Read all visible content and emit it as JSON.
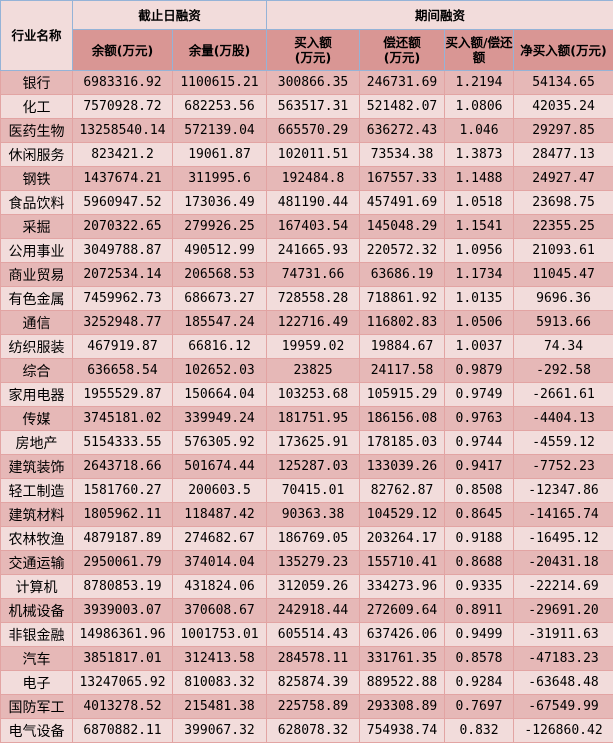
{
  "headers": {
    "industry": "行业名称",
    "group1": "截止日融资",
    "group2": "期间融资",
    "balance": "余额(万元)",
    "volume": "余量(万股)",
    "buy": "买入额\n(万元)",
    "repay": "偿还额\n(万元)",
    "ratio": "买入额/偿还额",
    "net": "净买入额(万元)"
  },
  "rows": [
    [
      "银行",
      "6983316.92",
      "1100615.21",
      "300866.35",
      "246731.69",
      "1.2194",
      "54134.65"
    ],
    [
      "化工",
      "7570928.72",
      "682253.56",
      "563517.31",
      "521482.07",
      "1.0806",
      "42035.24"
    ],
    [
      "医药生物",
      "13258540.14",
      "572139.04",
      "665570.29",
      "636272.43",
      "1.046",
      "29297.85"
    ],
    [
      "休闲服务",
      "823421.2",
      "19061.87",
      "102011.51",
      "73534.38",
      "1.3873",
      "28477.13"
    ],
    [
      "钢铁",
      "1437674.21",
      "311995.6",
      "192484.8",
      "167557.33",
      "1.1488",
      "24927.47"
    ],
    [
      "食品饮料",
      "5960947.52",
      "173036.49",
      "481190.44",
      "457491.69",
      "1.0518",
      "23698.75"
    ],
    [
      "采掘",
      "2070322.65",
      "279926.25",
      "167403.54",
      "145048.29",
      "1.1541",
      "22355.25"
    ],
    [
      "公用事业",
      "3049788.87",
      "490512.99",
      "241665.93",
      "220572.32",
      "1.0956",
      "21093.61"
    ],
    [
      "商业贸易",
      "2072534.14",
      "206568.53",
      "74731.66",
      "63686.19",
      "1.1734",
      "11045.47"
    ],
    [
      "有色金属",
      "7459962.73",
      "686673.27",
      "728558.28",
      "718861.92",
      "1.0135",
      "9696.36"
    ],
    [
      "通信",
      "3252948.77",
      "185547.24",
      "122716.49",
      "116802.83",
      "1.0506",
      "5913.66"
    ],
    [
      "纺织服装",
      "467919.87",
      "66816.12",
      "19959.02",
      "19884.67",
      "1.0037",
      "74.34"
    ],
    [
      "综合",
      "636658.54",
      "102652.03",
      "23825",
      "24117.58",
      "0.9879",
      "-292.58"
    ],
    [
      "家用电器",
      "1955529.87",
      "150664.04",
      "103253.68",
      "105915.29",
      "0.9749",
      "-2661.61"
    ],
    [
      "传媒",
      "3745181.02",
      "339949.24",
      "181751.95",
      "186156.08",
      "0.9763",
      "-4404.13"
    ],
    [
      "房地产",
      "5154333.55",
      "576305.92",
      "173625.91",
      "178185.03",
      "0.9744",
      "-4559.12"
    ],
    [
      "建筑装饰",
      "2643718.66",
      "501674.44",
      "125287.03",
      "133039.26",
      "0.9417",
      "-7752.23"
    ],
    [
      "轻工制造",
      "1581760.27",
      "200603.5",
      "70415.01",
      "82762.87",
      "0.8508",
      "-12347.86"
    ],
    [
      "建筑材料",
      "1805962.11",
      "118487.42",
      "90363.38",
      "104529.12",
      "0.8645",
      "-14165.74"
    ],
    [
      "农林牧渔",
      "4879187.89",
      "274682.67",
      "186769.05",
      "203264.17",
      "0.9188",
      "-16495.12"
    ],
    [
      "交通运输",
      "2950061.79",
      "374014.04",
      "135279.23",
      "155710.41",
      "0.8688",
      "-20431.18"
    ],
    [
      "计算机",
      "8780853.19",
      "431824.06",
      "312059.26",
      "334273.96",
      "0.9335",
      "-22214.69"
    ],
    [
      "机械设备",
      "3939003.07",
      "370608.67",
      "242918.44",
      "272609.64",
      "0.8911",
      "-29691.20"
    ],
    [
      "非银金融",
      "14986361.96",
      "1001753.01",
      "605514.43",
      "637426.06",
      "0.9499",
      "-31911.63"
    ],
    [
      "汽车",
      "3851817.01",
      "312413.58",
      "284578.11",
      "331761.35",
      "0.8578",
      "-47183.23"
    ],
    [
      "电子",
      "13247065.92",
      "810083.32",
      "825874.39",
      "889522.88",
      "0.9284",
      "-63648.48"
    ],
    [
      "国防军工",
      "4013278.52",
      "215481.38",
      "225758.89",
      "293308.89",
      "0.7697",
      "-67549.99"
    ],
    [
      "电气设备",
      "6870882.11",
      "399067.32",
      "628078.32",
      "754938.74",
      "0.832",
      "-126860.42"
    ]
  ],
  "colors": {
    "header_light": "#f2dcdb",
    "header_dark": "#d99694",
    "row_dark": "#e6b8b7",
    "row_light": "#f2dcdb"
  }
}
